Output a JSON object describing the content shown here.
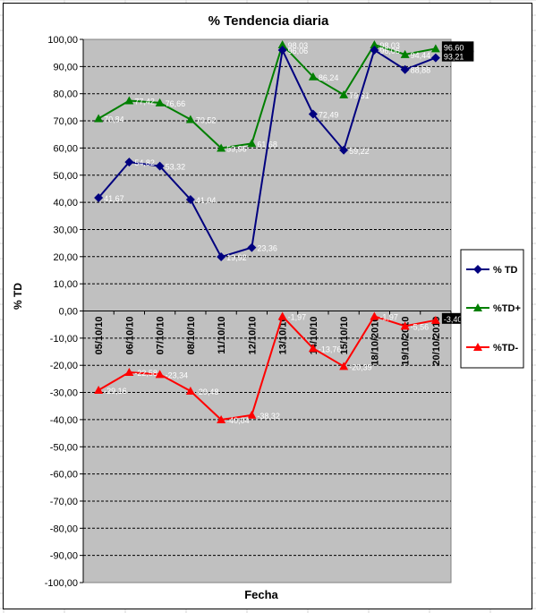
{
  "chart_data": {
    "type": "line",
    "title": "% Tendencia diaria",
    "xlabel": "Fecha",
    "ylabel": "% TD",
    "ylim": [
      -100,
      100
    ],
    "ytick_step": 10,
    "yticks": [
      "-100,00",
      "-90,00",
      "-80,00",
      "-70,00",
      "-60,00",
      "-50,00",
      "-40,00",
      "-30,00",
      "-20,00",
      "-10,00",
      "0,00",
      "10,00",
      "20,00",
      "30,00",
      "40,00",
      "50,00",
      "60,00",
      "70,00",
      "80,00",
      "90,00",
      "100,00"
    ],
    "grid": true,
    "legend_placement": "right",
    "plot_background": "#c0c0c0",
    "categories": [
      "05/10/10",
      "06/10/10",
      "07/10/10",
      "08/10/10",
      "11/10/10",
      "12/10/10",
      "13/10/10",
      "14/10/10",
      "15/10/10",
      "18/10/2010",
      "19/10/2010",
      "20/10/2010"
    ],
    "series": [
      {
        "name": "% TD",
        "color": "#00007f",
        "marker": "diamond",
        "values": [
          41.67,
          54.82,
          53.32,
          41.04,
          19.92,
          23.36,
          96.06,
          72.49,
          59.22,
          96.06,
          88.88,
          93.21
        ],
        "labels": [
          "41,67",
          "54,82",
          "53,32",
          "41,04",
          "19,92",
          "23,36",
          "96,06",
          "72,49",
          "59,22",
          "96,06",
          "88,88",
          "93,21"
        ]
      },
      {
        "name": "%TD+",
        "color": "#007f00",
        "marker": "triangle",
        "values": [
          70.84,
          77.42,
          76.66,
          70.52,
          59.96,
          61.68,
          98.03,
          86.24,
          79.61,
          98.03,
          94.44,
          96.6
        ],
        "labels": [
          "70,84",
          "77,42",
          "76,66",
          "70,52",
          "59,96",
          "61,68",
          "98,03",
          "86,24",
          "79,61",
          "98,03",
          "94,44",
          "96,60"
        ]
      },
      {
        "name": "%TD-",
        "color": "#ff0000",
        "marker": "triangle",
        "values": [
          -29.16,
          -22.58,
          -23.34,
          -29.48,
          -40.04,
          -38.32,
          -1.97,
          -13.76,
          -20.39,
          -1.97,
          -5.56,
          -3.4
        ],
        "labels": [
          "-29,16",
          "-22,58",
          "-23,34",
          "-29,48",
          "-40,04",
          "-38,32",
          "-1,97",
          "-13,76",
          "-20,39",
          "-1,97",
          "-5,56",
          "-3,40"
        ]
      }
    ]
  }
}
